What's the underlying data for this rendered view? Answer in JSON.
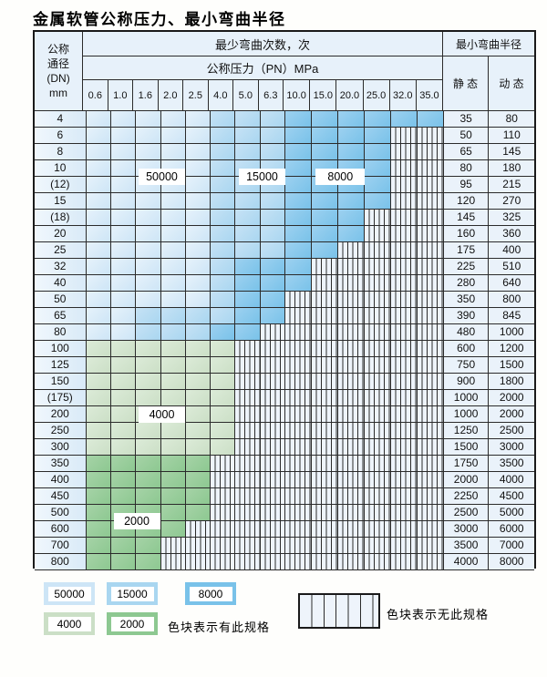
{
  "title": "金属软管公称压力、最小弯曲半径",
  "header": {
    "dn_lines": [
      "公称",
      "通径",
      "(DN)",
      "mm"
    ],
    "bend_cycles_label": "最少弯曲次数，次",
    "pressure_label": "公称压力（PN）MPa",
    "pressure_columns": [
      "0.6",
      "1.0",
      "1.6",
      "2.0",
      "2.5",
      "4.0",
      "5.0",
      "6.3",
      "10.0",
      "15.0",
      "20.0",
      "25.0",
      "32.0",
      "35.0"
    ],
    "min_radius_label": "最小弯曲半径",
    "static_label": "静 态",
    "dynamic_label": "动 态"
  },
  "zone_meaning": {
    "b1": "50000次",
    "b2": "15000次",
    "b3": "8000次",
    "g1": "4000次",
    "g2": "2000次",
    "h": "无此规格"
  },
  "rows": [
    {
      "dn": "4",
      "static": "35",
      "dynamic": "80",
      "spans": [
        [
          "b1",
          5
        ],
        [
          "b2",
          3
        ],
        [
          "b3",
          6
        ]
      ]
    },
    {
      "dn": "6",
      "static": "50",
      "dynamic": "110",
      "spans": [
        [
          "b1",
          5
        ],
        [
          "b2",
          3
        ],
        [
          "b3",
          4
        ],
        [
          "h",
          2
        ]
      ]
    },
    {
      "dn": "8",
      "static": "65",
      "dynamic": "145",
      "spans": [
        [
          "b1",
          5
        ],
        [
          "b2",
          3
        ],
        [
          "b3",
          4
        ],
        [
          "h",
          2
        ]
      ]
    },
    {
      "dn": "10",
      "static": "80",
      "dynamic": "180",
      "spans": [
        [
          "b1",
          5
        ],
        [
          "b2",
          3
        ],
        [
          "b3",
          4
        ],
        [
          "h",
          2
        ]
      ]
    },
    {
      "dn": "(12)",
      "static": "95",
      "dynamic": "215",
      "spans": [
        [
          "b1",
          5
        ],
        [
          "b2",
          3
        ],
        [
          "b3",
          4
        ],
        [
          "h",
          2
        ]
      ]
    },
    {
      "dn": "15",
      "static": "120",
      "dynamic": "270",
      "spans": [
        [
          "b1",
          5
        ],
        [
          "b2",
          3
        ],
        [
          "b3",
          4
        ],
        [
          "h",
          2
        ]
      ]
    },
    {
      "dn": "(18)",
      "static": "145",
      "dynamic": "325",
      "spans": [
        [
          "b1",
          5
        ],
        [
          "b2",
          3
        ],
        [
          "b3",
          3
        ],
        [
          "h",
          3
        ]
      ]
    },
    {
      "dn": "20",
      "static": "160",
      "dynamic": "360",
      "spans": [
        [
          "b1",
          5
        ],
        [
          "b2",
          3
        ],
        [
          "b3",
          3
        ],
        [
          "h",
          3
        ]
      ]
    },
    {
      "dn": "25",
      "static": "175",
      "dynamic": "400",
      "spans": [
        [
          "b1",
          5
        ],
        [
          "b2",
          3
        ],
        [
          "b3",
          2
        ],
        [
          "h",
          4
        ]
      ]
    },
    {
      "dn": "32",
      "static": "225",
      "dynamic": "510",
      "spans": [
        [
          "b1",
          5
        ],
        [
          "b2",
          1
        ],
        [
          "b3",
          3
        ],
        [
          "h",
          5
        ]
      ]
    },
    {
      "dn": "40",
      "static": "280",
      "dynamic": "640",
      "spans": [
        [
          "b1",
          5
        ],
        [
          "b2",
          1
        ],
        [
          "b3",
          3
        ],
        [
          "h",
          5
        ]
      ]
    },
    {
      "dn": "50",
      "static": "350",
      "dynamic": "800",
      "spans": [
        [
          "b1",
          5
        ],
        [
          "b2",
          1
        ],
        [
          "b3",
          2
        ],
        [
          "h",
          6
        ]
      ]
    },
    {
      "dn": "65",
      "static": "390",
      "dynamic": "845",
      "spans": [
        [
          "b1",
          2
        ],
        [
          "b2",
          4
        ],
        [
          "b3",
          2
        ],
        [
          "h",
          6
        ]
      ]
    },
    {
      "dn": "80",
      "static": "480",
      "dynamic": "1000",
      "spans": [
        [
          "b1",
          2
        ],
        [
          "b2",
          3
        ],
        [
          "b3",
          2
        ],
        [
          "h",
          7
        ]
      ]
    },
    {
      "dn": "100",
      "static": "600",
      "dynamic": "1200",
      "spans": [
        [
          "g1",
          6
        ],
        [
          "h",
          8
        ]
      ]
    },
    {
      "dn": "125",
      "static": "750",
      "dynamic": "1500",
      "spans": [
        [
          "g1",
          6
        ],
        [
          "h",
          8
        ]
      ]
    },
    {
      "dn": "150",
      "static": "900",
      "dynamic": "1800",
      "spans": [
        [
          "g1",
          6
        ],
        [
          "h",
          8
        ]
      ]
    },
    {
      "dn": "(175)",
      "static": "1000",
      "dynamic": "2000",
      "spans": [
        [
          "g1",
          6
        ],
        [
          "h",
          8
        ]
      ]
    },
    {
      "dn": "200",
      "static": "1000",
      "dynamic": "2000",
      "spans": [
        [
          "g1",
          6
        ],
        [
          "h",
          8
        ]
      ]
    },
    {
      "dn": "250",
      "static": "1250",
      "dynamic": "2500",
      "spans": [
        [
          "g1",
          6
        ],
        [
          "h",
          8
        ]
      ]
    },
    {
      "dn": "300",
      "static": "1500",
      "dynamic": "3000",
      "spans": [
        [
          "g1",
          6
        ],
        [
          "h",
          8
        ]
      ]
    },
    {
      "dn": "350",
      "static": "1750",
      "dynamic": "3500",
      "spans": [
        [
          "g2",
          5
        ],
        [
          "h",
          9
        ]
      ]
    },
    {
      "dn": "400",
      "static": "2000",
      "dynamic": "4000",
      "spans": [
        [
          "g2",
          5
        ],
        [
          "h",
          9
        ]
      ]
    },
    {
      "dn": "450",
      "static": "2250",
      "dynamic": "4500",
      "spans": [
        [
          "g2",
          5
        ],
        [
          "h",
          9
        ]
      ]
    },
    {
      "dn": "500",
      "static": "2500",
      "dynamic": "5000",
      "spans": [
        [
          "g2",
          5
        ],
        [
          "h",
          9
        ]
      ]
    },
    {
      "dn": "600",
      "static": "3000",
      "dynamic": "6000",
      "spans": [
        [
          "g2",
          4
        ],
        [
          "h",
          10
        ]
      ]
    },
    {
      "dn": "700",
      "static": "3500",
      "dynamic": "7000",
      "spans": [
        [
          "g2",
          3
        ],
        [
          "h",
          11
        ]
      ]
    },
    {
      "dn": "800",
      "static": "4000",
      "dynamic": "8000",
      "spans": [
        [
          "g2",
          3
        ],
        [
          "h",
          11
        ]
      ]
    }
  ],
  "overlays": [
    {
      "text": "50000",
      "col": 2,
      "span": 2,
      "row": 3,
      "rows": 2
    },
    {
      "text": "15000",
      "col": 6,
      "span": 2,
      "row": 3,
      "rows": 2
    },
    {
      "text": "8000",
      "col": 9,
      "span": 2,
      "row": 3,
      "rows": 2
    },
    {
      "text": "4000",
      "col": 2,
      "span": 2,
      "row": 18,
      "rows": 1
    },
    {
      "text": "2000",
      "col": 1,
      "span": 2,
      "row": 24,
      "rows": 2
    }
  ],
  "legend": {
    "swatches": [
      {
        "value": "50000",
        "zone": "b1"
      },
      {
        "value": "15000",
        "zone": "b2"
      },
      {
        "value": "8000",
        "zone": "b3"
      },
      {
        "value": "4000",
        "zone": "g1"
      },
      {
        "value": "2000",
        "zone": "g2"
      }
    ],
    "has_spec_label": "色块表示有此规格",
    "no_spec_label": "色块表示无此规格"
  },
  "colors": {
    "grid_line": "#2b2b2b",
    "outer_border": "#1a1a1a",
    "header_bg": "#e7f1fa",
    "row_label_bg": [
      "#f0f7fd",
      "#d9eaf7"
    ],
    "value_cell_bg": "#eaf2fa",
    "hatch_bg": "#eef4fb",
    "zones": {
      "b1": [
        "#e6f2fb",
        "#cde5f6"
      ],
      "b2": [
        "#c6e2f5",
        "#a9d6f0"
      ],
      "b3": [
        "#9dd1f0",
        "#79c2e9"
      ],
      "g1": [
        "#dcebd8",
        "#cbdfc6"
      ],
      "g2": [
        "#a6d3a7",
        "#8dc891"
      ]
    }
  }
}
